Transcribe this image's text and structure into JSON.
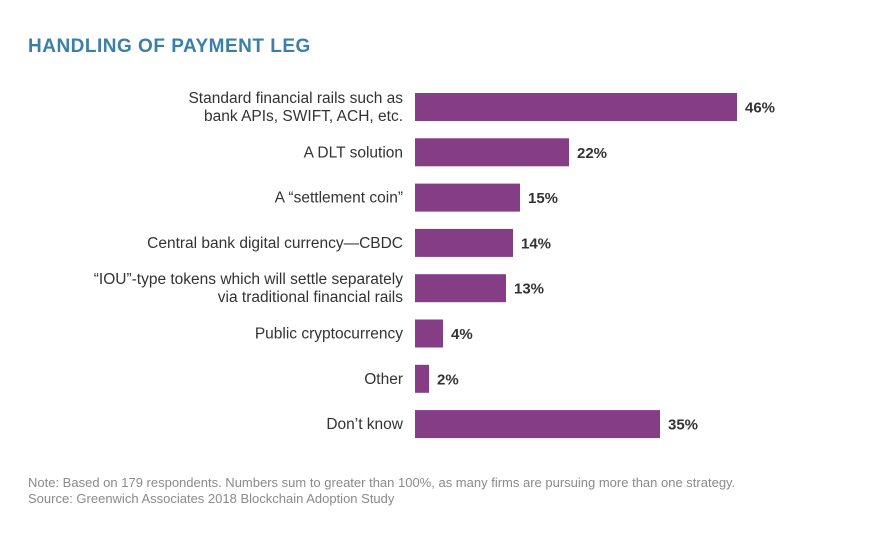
{
  "chart_data": {
    "type": "bar",
    "orientation": "horizontal",
    "title": "HANDLING OF PAYMENT LEG",
    "categories": [
      "Standard financial rails such as bank APIs, SWIFT, ACH, etc.",
      "A DLT solution",
      "A “settlement coin”",
      "Central bank digital currency—CBDC",
      "“IOU”-type tokens which will settle separately via traditional financial rails",
      "Public cryptocurrency",
      "Other",
      "Don’t know"
    ],
    "category_lines": [
      [
        "Standard financial rails such as",
        "bank APIs, SWIFT, ACH, etc."
      ],
      [
        "A DLT solution"
      ],
      [
        "A “settlement coin”"
      ],
      [
        "Central bank digital currency—CBDC"
      ],
      [
        "“IOU”-type tokens which will settle separately",
        "via traditional financial rails"
      ],
      [
        "Public cryptocurrency"
      ],
      [
        "Other"
      ],
      [
        "Don’t know"
      ]
    ],
    "values": [
      46,
      22,
      15,
      14,
      13,
      4,
      2,
      35
    ],
    "value_labels": [
      "46%",
      "22%",
      "15%",
      "14%",
      "13%",
      "4%",
      "2%",
      "35%"
    ],
    "unit": "%",
    "xlim": [
      0,
      100
    ],
    "grid": false,
    "bar_color": "#853d86",
    "title_color": "#3b7fa6"
  },
  "footnotes": {
    "note": "Note: Based on 179 respondents. Numbers sum to greater than 100%, as many firms are pursuing more than one strategy.",
    "source": "Source: Greenwich Associates 2018 Blockchain Adoption Study"
  }
}
